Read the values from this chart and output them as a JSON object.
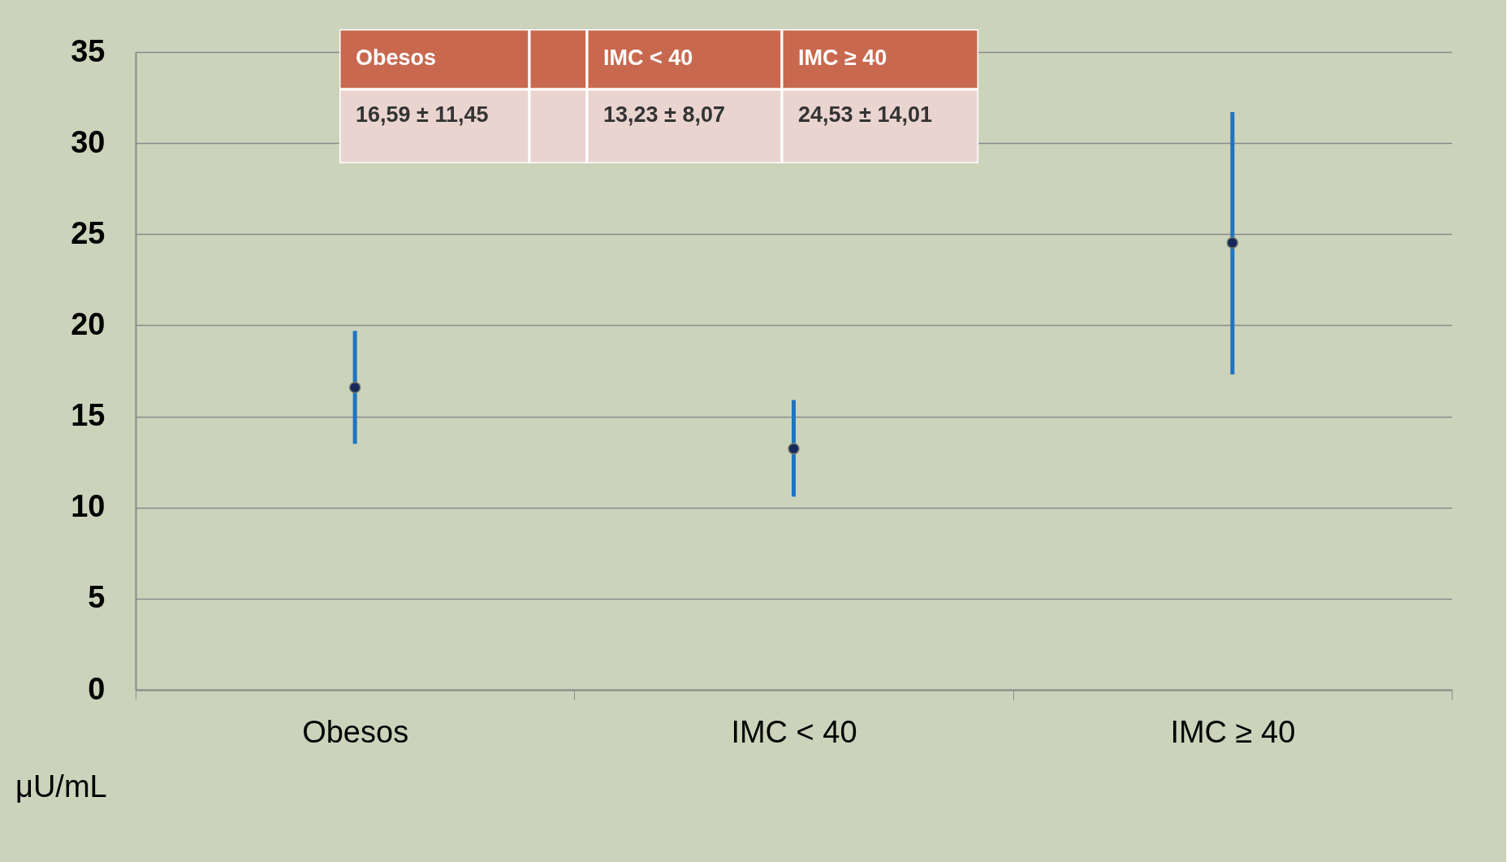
{
  "chart_data": {
    "type": "scatter",
    "categories": [
      "Obesos",
      "IMC < 40",
      "IMC ≥ 40"
    ],
    "values": [
      16.59,
      13.23,
      24.53
    ],
    "errors": [
      [
        13.5,
        19.7
      ],
      [
        10.6,
        15.9
      ],
      [
        17.3,
        31.7
      ]
    ],
    "annotations": [
      "Obesos",
      "IMC < 40",
      "IMC ≥ 40",
      "16,59 ±  11,45",
      "13,23 ± 8,07",
      "24,53 ±  14,01"
    ],
    "color": "#17285c",
    "ylabel": "μU/mL",
    "ylim": [
      0,
      35
    ],
    "yticks": [
      0,
      5,
      10,
      15,
      20,
      25,
      30,
      35
    ],
    "grid": "y",
    "marker": "circle"
  }
}
